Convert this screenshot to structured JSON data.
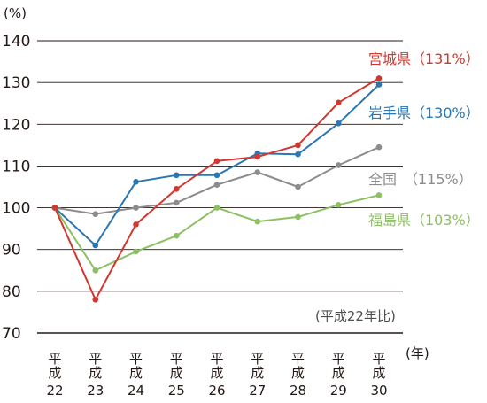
{
  "chart_data": {
    "type": "line",
    "title": "",
    "xlabel": "",
    "ylabel": "",
    "y_unit_label": "(%)",
    "x_unit_label": "(年)",
    "note": "(平成22年比)",
    "categories": [
      {
        "top": "平成",
        "year": "22"
      },
      {
        "top": "平成",
        "year": "23"
      },
      {
        "top": "平成",
        "year": "24"
      },
      {
        "top": "平成",
        "year": "25"
      },
      {
        "top": "平成",
        "year": "26"
      },
      {
        "top": "平成",
        "year": "27"
      },
      {
        "top": "平成",
        "year": "28"
      },
      {
        "top": "平成",
        "year": "29"
      },
      {
        "top": "平成",
        "year": "30"
      }
    ],
    "ylim": [
      70,
      140
    ],
    "yticks": [
      70,
      80,
      90,
      100,
      110,
      120,
      130,
      140
    ],
    "grid": true,
    "series": [
      {
        "name": "宮城県",
        "label": "宮城県（131%）",
        "color": "#d1372f",
        "values": [
          100,
          78,
          96,
          104.5,
          111.2,
          112.2,
          115,
          125.2,
          131
        ]
      },
      {
        "name": "岩手県",
        "label": "岩手県（130%）",
        "color": "#2a76b2",
        "values": [
          100,
          91,
          106.2,
          107.8,
          107.8,
          113,
          112.8,
          120.2,
          129.5
        ]
      },
      {
        "name": "全国",
        "label": "全国　（115%）",
        "color": "#8c8c8c",
        "values": [
          100,
          98.5,
          100,
          101.2,
          105.5,
          108.5,
          105,
          110.2,
          114.5
        ]
      },
      {
        "name": "福島県",
        "label": "福島県（103%）",
        "color": "#8cc063",
        "values": [
          100,
          85,
          89.5,
          93.3,
          100,
          96.7,
          97.8,
          100.7,
          103
        ]
      }
    ]
  }
}
